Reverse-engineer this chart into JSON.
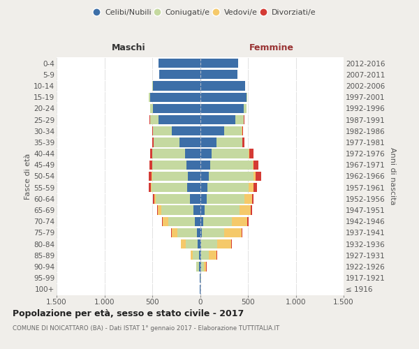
{
  "age_groups": [
    "100+",
    "95-99",
    "90-94",
    "85-89",
    "80-84",
    "75-79",
    "70-74",
    "65-69",
    "60-64",
    "55-59",
    "50-54",
    "45-49",
    "40-44",
    "35-39",
    "30-34",
    "25-29",
    "20-24",
    "15-19",
    "10-14",
    "5-9",
    "0-4"
  ],
  "birth_years": [
    "≤ 1916",
    "1917-1921",
    "1922-1926",
    "1927-1931",
    "1932-1936",
    "1937-1941",
    "1942-1946",
    "1947-1951",
    "1952-1956",
    "1957-1961",
    "1962-1966",
    "1967-1971",
    "1972-1976",
    "1977-1981",
    "1982-1986",
    "1987-1991",
    "1992-1996",
    "1997-2001",
    "2002-2006",
    "2007-2011",
    "2012-2016"
  ],
  "males": {
    "celibi": [
      2,
      3,
      12,
      12,
      22,
      32,
      52,
      72,
      105,
      135,
      125,
      140,
      155,
      215,
      295,
      435,
      495,
      525,
      495,
      430,
      435
    ],
    "coniugati": [
      0,
      4,
      25,
      65,
      130,
      205,
      280,
      330,
      355,
      370,
      375,
      360,
      345,
      270,
      195,
      88,
      28,
      8,
      2,
      0,
      0
    ],
    "vedovi": [
      0,
      0,
      5,
      22,
      48,
      62,
      58,
      38,
      18,
      13,
      5,
      3,
      2,
      2,
      2,
      2,
      0,
      0,
      0,
      0,
      0
    ],
    "divorziati": [
      0,
      0,
      0,
      2,
      4,
      6,
      10,
      12,
      18,
      22,
      28,
      28,
      22,
      16,
      10,
      5,
      2,
      0,
      0,
      0,
      0
    ]
  },
  "females": {
    "nubili": [
      2,
      4,
      10,
      10,
      14,
      18,
      32,
      48,
      68,
      78,
      88,
      108,
      118,
      168,
      255,
      368,
      458,
      488,
      468,
      388,
      398
    ],
    "coniugate": [
      0,
      5,
      32,
      82,
      162,
      232,
      302,
      362,
      392,
      432,
      472,
      442,
      392,
      272,
      182,
      88,
      28,
      8,
      2,
      0,
      0
    ],
    "vedove": [
      0,
      5,
      22,
      82,
      152,
      182,
      162,
      122,
      82,
      52,
      22,
      10,
      5,
      4,
      3,
      2,
      0,
      0,
      0,
      0,
      0
    ],
    "divorziate": [
      0,
      0,
      2,
      4,
      6,
      8,
      12,
      14,
      20,
      32,
      58,
      48,
      42,
      22,
      12,
      5,
      2,
      0,
      0,
      0,
      0
    ]
  },
  "colors": {
    "celibi_nubili": "#3d6fa8",
    "coniugati": "#c5d9a0",
    "vedovi": "#f5c96a",
    "divorziati": "#d43b35"
  },
  "legend_labels": [
    "Celibi/Nubili",
    "Coniugati/e",
    "Vedovi/e",
    "Divorziati/e"
  ],
  "title": "Popolazione per età, sesso e stato civile - 2017",
  "subtitle": "COMUNE DI NOICATTARO (BA) - Dati ISTAT 1° gennaio 2017 - Elaborazione TUTTITALIA.IT",
  "xlabel_left": "Maschi",
  "xlabel_right": "Femmine",
  "ylabel_left": "Fasce di età",
  "ylabel_right": "Anni di nascita",
  "xlim": 1500,
  "xtick_labels": [
    "1.500",
    "1.000",
    "500",
    "0",
    "500",
    "1.000",
    "1.500"
  ],
  "xtick_vals": [
    -1500,
    -1000,
    -500,
    0,
    500,
    1000,
    1500
  ],
  "bg_color": "#f0eeea",
  "plot_bg": "#ffffff",
  "grid_color": "#cccccc"
}
